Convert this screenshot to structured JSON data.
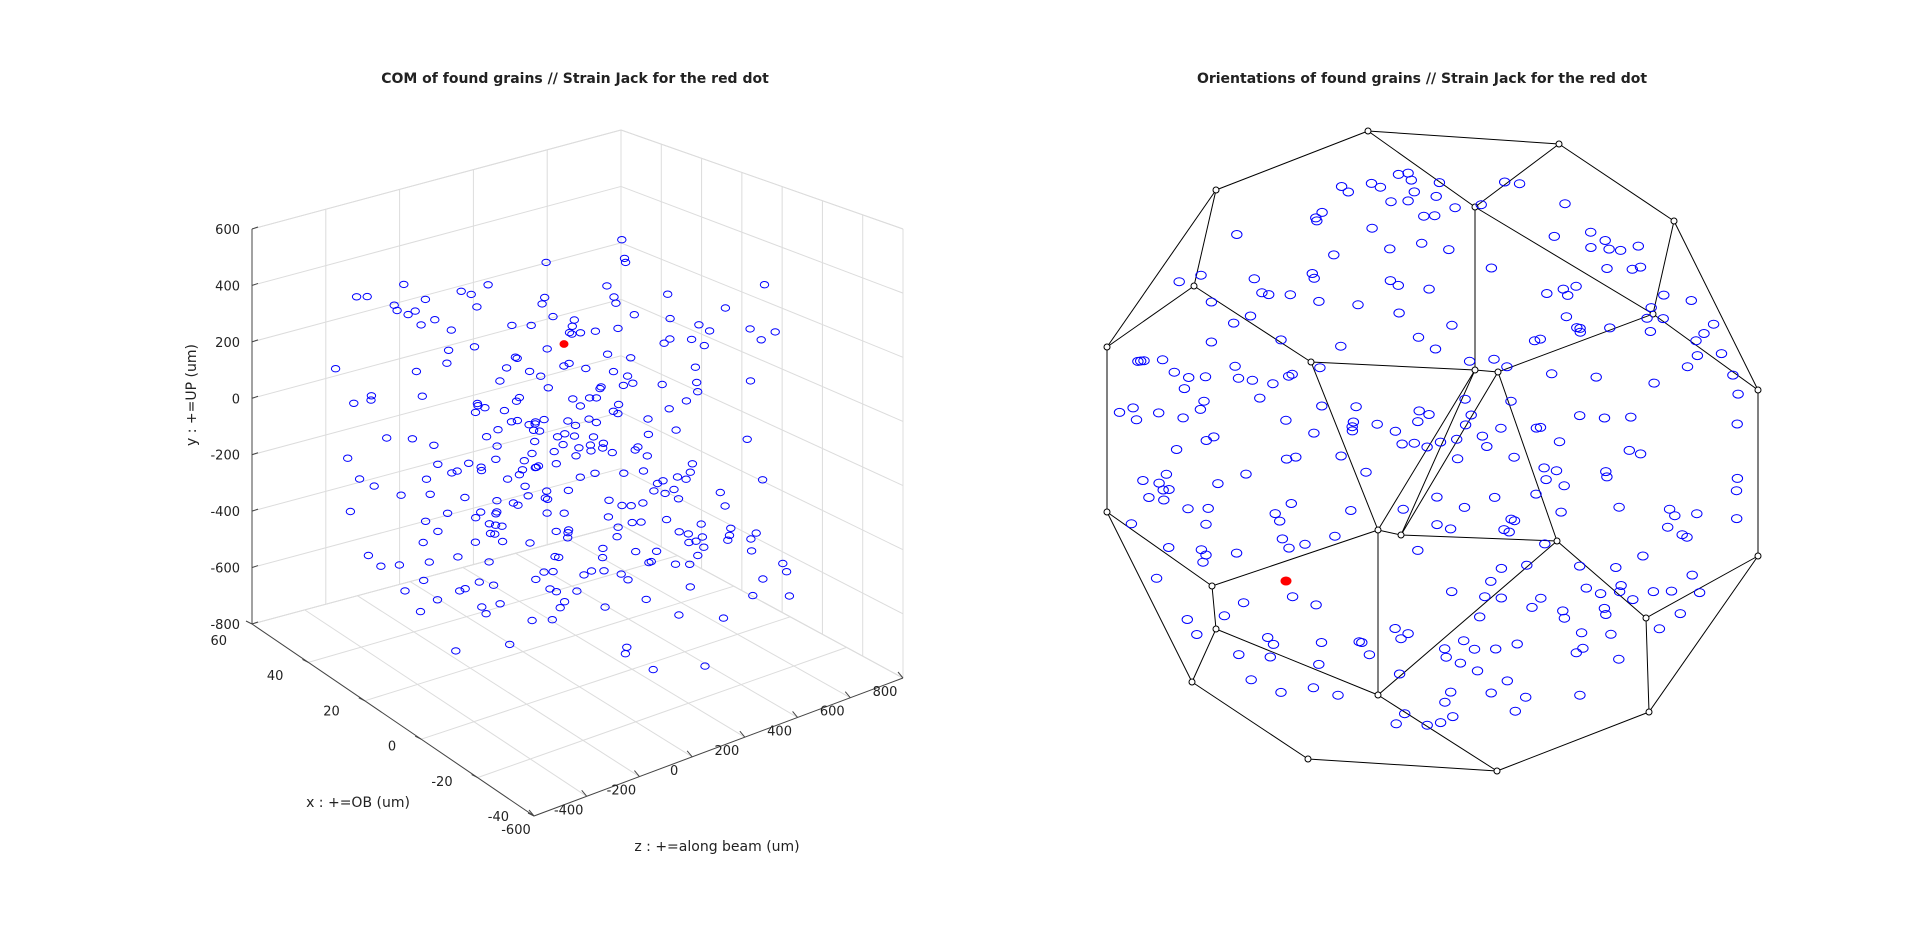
{
  "chart_data": [
    {
      "type": "scatter",
      "dimensionality": "3d",
      "title": "COM of found grains // Strain Jack for the red dot",
      "xlabel": "x : +=OB (um)",
      "ylabel": "y : +=UP (um)",
      "zlabel": "z : +=along beam (um)",
      "x_ticks": [
        "60",
        "40",
        "20",
        "0",
        "-20",
        "-40"
      ],
      "y_ticks": [
        "600",
        "400",
        "200",
        "0",
        "-200",
        "-400",
        "-600",
        "-800"
      ],
      "z_ticks": [
        "-600",
        "-400",
        "-200",
        "0",
        "200",
        "400",
        "600",
        "800"
      ],
      "xlim": [
        -40,
        60
      ],
      "ylim": [
        -800,
        600
      ],
      "zlim": [
        -600,
        800
      ],
      "grid": true,
      "marker_color": "#0000ff",
      "highlight_color": "#ff0000",
      "highlight_count": 1,
      "point_count": 290
    },
    {
      "type": "scatter",
      "projection": "orientation polyhedron (2D)",
      "title": "Orientations of found grains // Strain Jack for the red dot",
      "marker_color": "#0000ff",
      "highlight_color": "#ff0000",
      "highlight_count": 1,
      "point_count": 290
    }
  ]
}
